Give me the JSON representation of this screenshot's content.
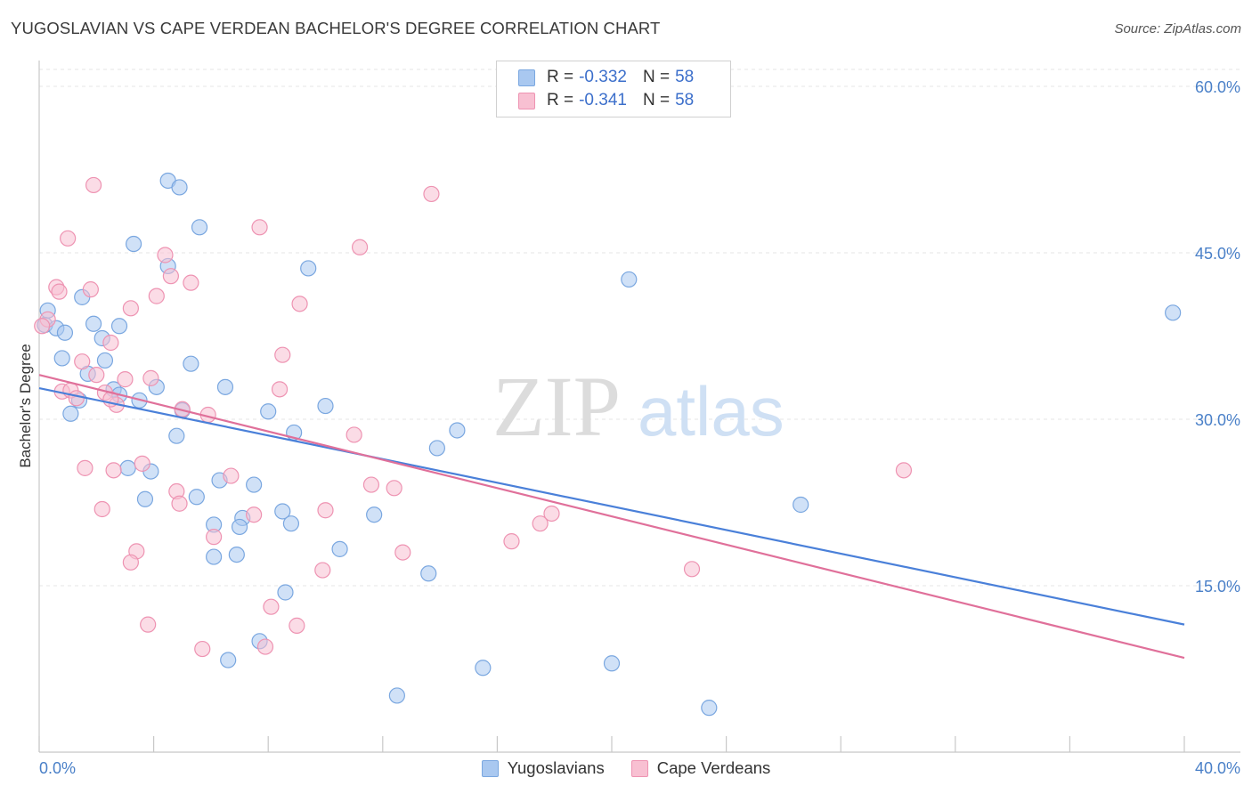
{
  "header": {
    "title": "YUGOSLAVIAN VS CAPE VERDEAN BACHELOR'S DEGREE CORRELATION CHART",
    "source": "Source: ZipAtlas.com"
  },
  "watermark": {
    "zip": "ZIP",
    "atlas": "atlas"
  },
  "legend": {
    "rows": [
      {
        "r_label": "R = ",
        "r_value": "-0.332",
        "n_label": "N = ",
        "n_value": "58",
        "color": "#a9c8f0",
        "border": "#7aa7e0"
      },
      {
        "r_label": "R = ",
        "r_value": "-0.341",
        "n_label": "N = ",
        "n_value": "58",
        "color": "#f8c0d2",
        "border": "#ee93b2"
      }
    ]
  },
  "bottom_legend": {
    "items": [
      {
        "label": "Yugoslavians",
        "color": "#a9c8f0",
        "border": "#7aa7e0"
      },
      {
        "label": "Cape Verdeans",
        "color": "#f8c0d2",
        "border": "#ee93b2"
      }
    ]
  },
  "chart_data": {
    "type": "scatter",
    "title": "YUGOSLAVIAN VS CAPE VERDEAN BACHELOR'S DEGREE CORRELATION CHART",
    "xlabel": "",
    "ylabel": "Bachelor's Degree",
    "xlim": [
      0,
      40
    ],
    "ylim": [
      0,
      60
    ],
    "x_tick_labels": [
      "0.0%",
      "40.0%"
    ],
    "y_ticks": [
      15,
      30,
      45,
      60
    ],
    "y_tick_labels": [
      "15.0%",
      "30.0%",
      "45.0%",
      "60.0%"
    ],
    "grid": true,
    "colors": {
      "yugoslavians": "#4a80d9",
      "cape_verdeans": "#e0709a",
      "tick_label": "#4a80c8"
    },
    "series": [
      {
        "name": "Yugoslavians",
        "fill": "#a9c8f0",
        "stroke": "#7aa7e0",
        "trend": {
          "x": [
            0,
            40
          ],
          "y": [
            32.8,
            11.5
          ]
        },
        "points": [
          [
            0.2,
            38.5
          ],
          [
            0.3,
            39.8
          ],
          [
            0.6,
            38.2
          ],
          [
            0.9,
            37.8
          ],
          [
            1.5,
            41.0
          ],
          [
            0.8,
            35.5
          ],
          [
            1.9,
            38.6
          ],
          [
            2.8,
            38.4
          ],
          [
            2.2,
            37.3
          ],
          [
            2.3,
            35.3
          ],
          [
            1.7,
            34.1
          ],
          [
            2.6,
            32.7
          ],
          [
            1.4,
            31.7
          ],
          [
            1.1,
            30.5
          ],
          [
            2.8,
            32.2
          ],
          [
            3.5,
            31.7
          ],
          [
            4.1,
            32.9
          ],
          [
            5.3,
            35.0
          ],
          [
            6.5,
            32.9
          ],
          [
            8.0,
            30.7
          ],
          [
            10.0,
            31.2
          ],
          [
            4.8,
            28.5
          ],
          [
            8.9,
            28.8
          ],
          [
            14.6,
            29.0
          ],
          [
            13.9,
            27.4
          ],
          [
            3.1,
            25.6
          ],
          [
            3.9,
            25.3
          ],
          [
            6.3,
            24.5
          ],
          [
            7.5,
            24.1
          ],
          [
            5.5,
            23.0
          ],
          [
            3.7,
            22.8
          ],
          [
            8.5,
            21.7
          ],
          [
            11.7,
            21.4
          ],
          [
            7.1,
            21.1
          ],
          [
            8.8,
            20.6
          ],
          [
            6.1,
            20.5
          ],
          [
            7.0,
            20.3
          ],
          [
            10.5,
            18.3
          ],
          [
            6.1,
            17.6
          ],
          [
            6.9,
            17.8
          ],
          [
            13.6,
            16.1
          ],
          [
            8.6,
            14.4
          ],
          [
            7.7,
            10.0
          ],
          [
            6.6,
            8.3
          ],
          [
            15.5,
            7.6
          ],
          [
            20.0,
            8.0
          ],
          [
            12.5,
            5.1
          ],
          [
            23.4,
            4.0
          ],
          [
            4.5,
            43.8
          ],
          [
            9.4,
            43.6
          ],
          [
            3.3,
            45.8
          ],
          [
            5.6,
            47.3
          ],
          [
            4.5,
            51.5
          ],
          [
            4.9,
            50.9
          ],
          [
            20.6,
            42.6
          ],
          [
            39.6,
            39.6
          ],
          [
            26.6,
            22.3
          ],
          [
            5.0,
            30.8
          ]
        ]
      },
      {
        "name": "Cape Verdeans",
        "fill": "#f8c0d2",
        "stroke": "#ee93b2",
        "trend": {
          "x": [
            0,
            40
          ],
          "y": [
            34.0,
            8.5
          ]
        },
        "points": [
          [
            1.9,
            51.1
          ],
          [
            13.7,
            50.3
          ],
          [
            1.0,
            46.3
          ],
          [
            7.7,
            47.3
          ],
          [
            11.2,
            45.5
          ],
          [
            4.4,
            44.8
          ],
          [
            0.6,
            41.9
          ],
          [
            0.7,
            41.5
          ],
          [
            1.8,
            41.7
          ],
          [
            4.6,
            42.9
          ],
          [
            5.3,
            42.3
          ],
          [
            4.1,
            41.1
          ],
          [
            9.1,
            40.4
          ],
          [
            3.2,
            40.0
          ],
          [
            0.3,
            39.0
          ],
          [
            0.1,
            38.4
          ],
          [
            2.5,
            36.9
          ],
          [
            8.5,
            35.8
          ],
          [
            1.5,
            35.2
          ],
          [
            2.0,
            34.0
          ],
          [
            3.0,
            33.6
          ],
          [
            3.9,
            33.7
          ],
          [
            0.8,
            32.5
          ],
          [
            1.1,
            32.6
          ],
          [
            2.3,
            32.4
          ],
          [
            8.4,
            32.7
          ],
          [
            1.3,
            31.9
          ],
          [
            2.7,
            31.3
          ],
          [
            5.0,
            30.9
          ],
          [
            5.9,
            30.4
          ],
          [
            11.0,
            28.6
          ],
          [
            1.6,
            25.6
          ],
          [
            2.6,
            25.4
          ],
          [
            3.6,
            26.0
          ],
          [
            6.7,
            24.9
          ],
          [
            4.8,
            23.5
          ],
          [
            11.6,
            24.1
          ],
          [
            12.4,
            23.8
          ],
          [
            4.9,
            22.4
          ],
          [
            2.2,
            21.9
          ],
          [
            7.5,
            21.4
          ],
          [
            10.0,
            21.8
          ],
          [
            17.9,
            21.5
          ],
          [
            17.5,
            20.6
          ],
          [
            6.1,
            19.4
          ],
          [
            16.5,
            19.0
          ],
          [
            3.4,
            18.1
          ],
          [
            12.7,
            18.0
          ],
          [
            3.2,
            17.1
          ],
          [
            9.9,
            16.4
          ],
          [
            22.8,
            16.5
          ],
          [
            8.1,
            13.1
          ],
          [
            3.8,
            11.5
          ],
          [
            9.0,
            11.4
          ],
          [
            5.7,
            9.3
          ],
          [
            7.9,
            9.5
          ],
          [
            30.2,
            25.4
          ],
          [
            2.5,
            31.8
          ]
        ]
      }
    ]
  }
}
